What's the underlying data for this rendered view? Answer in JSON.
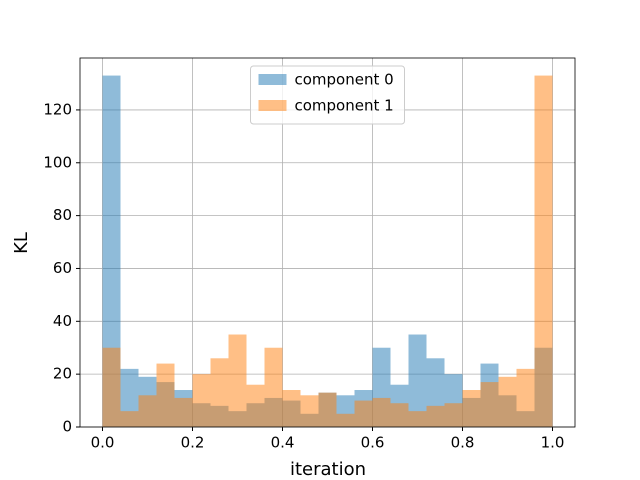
{
  "chart_data": {
    "type": "histogram",
    "x_label": "iteration",
    "y_label": "KL",
    "bins": [
      0,
      0.04,
      0.08,
      0.12,
      0.16,
      0.2,
      0.24,
      0.28,
      0.32,
      0.36,
      0.4,
      0.44,
      0.48,
      0.52,
      0.56,
      0.6,
      0.64,
      0.68,
      0.72,
      0.76,
      0.8,
      0.84,
      0.88,
      0.92,
      0.96,
      1
    ],
    "series": [
      {
        "name": "component 0",
        "color": "#1f77b4",
        "values": [
          133,
          22,
          19,
          17,
          14,
          9,
          8,
          6,
          9,
          11,
          10,
          5,
          13,
          12,
          14,
          30,
          16,
          35,
          26,
          20,
          11,
          24,
          12,
          6,
          30
        ]
      },
      {
        "name": "component 1",
        "color": "#ff7f0e",
        "values": [
          30,
          6,
          12,
          24,
          11,
          20,
          26,
          35,
          16,
          30,
          14,
          12,
          13,
          5,
          10,
          11,
          9,
          6,
          8,
          9,
          14,
          17,
          19,
          22,
          133
        ]
      }
    ],
    "alpha": 0.5,
    "xlim": [
      -0.05,
      1.05
    ],
    "ylim": [
      0,
      139.65
    ],
    "xticks": [
      {
        "value": 0,
        "label": "0.0"
      },
      {
        "value": 0.2,
        "label": "0.2"
      },
      {
        "value": 0.4,
        "label": "0.4"
      },
      {
        "value": 0.6,
        "label": "0.6"
      },
      {
        "value": 0.8,
        "label": "0.8"
      },
      {
        "value": 1,
        "label": "1.0"
      }
    ],
    "yticks": [
      0,
      20,
      40,
      60,
      80,
      100,
      120
    ],
    "grid": true,
    "legend": "upper center"
  }
}
